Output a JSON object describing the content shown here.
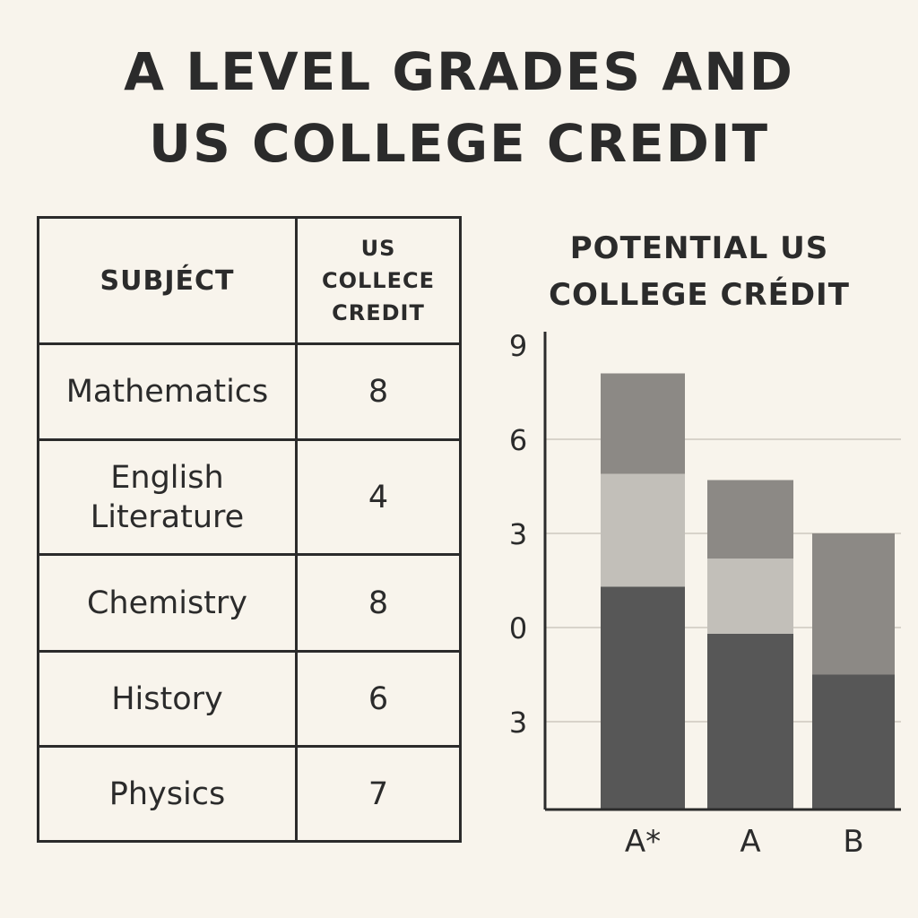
{
  "title": {
    "line1": "A LEVEL GRADES AND",
    "line2": "US COLLEGE CREDIT"
  },
  "table": {
    "headers": {
      "subject": "SUBJÉCT",
      "credit_lines": [
        "US",
        "COLLECE",
        "CREDIT"
      ]
    },
    "rows": [
      {
        "subject": "Mathematics",
        "credit": "8"
      },
      {
        "subject": "English Literature",
        "credit": "4"
      },
      {
        "subject": "Chemistry",
        "credit": "8"
      },
      {
        "subject": "History",
        "credit": "6"
      },
      {
        "subject": "Physics",
        "credit": "7"
      }
    ]
  },
  "chart_data": {
    "type": "bar",
    "stacked": true,
    "title_lines": [
      "POTENTIAL US",
      "COLLEGE CRÉDIT"
    ],
    "categories": [
      "A*",
      "A",
      "B"
    ],
    "ytick_labels": [
      "9",
      "6",
      "3",
      "0",
      "3"
    ],
    "ytick_values": [
      9,
      6,
      3,
      0,
      -3
    ],
    "ylim": [
      -6,
      9
    ],
    "grid": true,
    "series": [
      {
        "values": [
          1.3,
          -0.2,
          -1.5
        ]
      },
      {
        "values": [
          3.6,
          2.4,
          0
        ]
      },
      {
        "values": [
          3.2,
          2.5,
          4.5
        ]
      }
    ],
    "colors": [
      "#575757",
      "#c2bfb9",
      "#8c8985"
    ]
  }
}
